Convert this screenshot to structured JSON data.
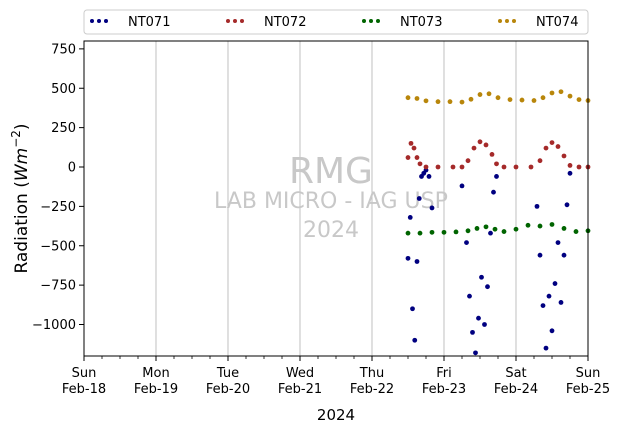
{
  "chart_data": {
    "type": "scatter",
    "xlabel": "2024",
    "ylabel_main": "Radiation (",
    "ylabel_unit": "Wm",
    "ylabel_exp": "−2",
    "ylabel_close": ")",
    "xlim": [
      "2024-02-18",
      "2024-02-25"
    ],
    "ylim": [
      -1200,
      800
    ],
    "yticks": [
      -1000,
      -750,
      -500,
      -250,
      0,
      250,
      500,
      750
    ],
    "ytick_labels": [
      "−1000",
      "−750",
      "−500",
      "−250",
      "0",
      "250",
      "500",
      "750"
    ],
    "xtick_labels": [
      {
        "day": "Sun",
        "date": "Feb-18"
      },
      {
        "day": "Mon",
        "date": "Feb-19"
      },
      {
        "day": "Tue",
        "date": "Feb-20"
      },
      {
        "day": "Wed",
        "date": "Feb-21"
      },
      {
        "day": "Thu",
        "date": "Feb-22"
      },
      {
        "day": "Fri",
        "date": "Feb-23"
      },
      {
        "day": "Sat",
        "date": "Feb-24"
      },
      {
        "day": "Sun",
        "date": "Feb-25"
      }
    ],
    "grid": "vertical",
    "legend_position": "top",
    "watermark": [
      "RMG",
      "LAB MICRO - IAG USP",
      "2024"
    ],
    "series": [
      {
        "name": "NT071",
        "color": "#000080",
        "points": [
          [
            "2024-02-22 12:00",
            -580
          ],
          [
            "2024-02-22 12:45",
            -320
          ],
          [
            "2024-02-22 13:30",
            -900
          ],
          [
            "2024-02-22 14:15",
            -1100
          ],
          [
            "2024-02-22 15:00",
            -600
          ],
          [
            "2024-02-22 15:45",
            -200
          ],
          [
            "2024-02-22 16:30",
            -60
          ],
          [
            "2024-02-22 17:15",
            -40
          ],
          [
            "2024-02-22 18:00",
            -20
          ],
          [
            "2024-02-22 19:00",
            -60
          ],
          [
            "2024-02-22 20:00",
            -260
          ],
          [
            "2024-02-23 06:00",
            -120
          ],
          [
            "2024-02-23 07:30",
            -480
          ],
          [
            "2024-02-23 08:30",
            -820
          ],
          [
            "2024-02-23 09:30",
            -1050
          ],
          [
            "2024-02-23 10:30",
            -1180
          ],
          [
            "2024-02-23 11:30",
            -960
          ],
          [
            "2024-02-23 12:30",
            -700
          ],
          [
            "2024-02-23 13:30",
            -1000
          ],
          [
            "2024-02-23 14:30",
            -760
          ],
          [
            "2024-02-23 15:30",
            -420
          ],
          [
            "2024-02-23 16:30",
            -160
          ],
          [
            "2024-02-23 17:30",
            -60
          ],
          [
            "2024-02-24 07:00",
            -250
          ],
          [
            "2024-02-24 08:00",
            -560
          ],
          [
            "2024-02-24 09:00",
            -880
          ],
          [
            "2024-02-24 10:00",
            -1150
          ],
          [
            "2024-02-24 11:00",
            -820
          ],
          [
            "2024-02-24 12:00",
            -1040
          ],
          [
            "2024-02-24 13:00",
            -740
          ],
          [
            "2024-02-24 14:00",
            -480
          ],
          [
            "2024-02-24 15:00",
            -860
          ],
          [
            "2024-02-24 16:00",
            -560
          ],
          [
            "2024-02-24 17:00",
            -240
          ],
          [
            "2024-02-24 18:00",
            -40
          ]
        ]
      },
      {
        "name": "NT072",
        "color": "#a52a2a",
        "points": [
          [
            "2024-02-22 12:00",
            60
          ],
          [
            "2024-02-22 13:00",
            150
          ],
          [
            "2024-02-22 14:00",
            120
          ],
          [
            "2024-02-22 15:00",
            60
          ],
          [
            "2024-02-22 16:00",
            20
          ],
          [
            "2024-02-22 18:00",
            0
          ],
          [
            "2024-02-22 22:00",
            0
          ],
          [
            "2024-02-23 03:00",
            0
          ],
          [
            "2024-02-23 06:00",
            0
          ],
          [
            "2024-02-23 08:00",
            40
          ],
          [
            "2024-02-23 10:00",
            120
          ],
          [
            "2024-02-23 12:00",
            160
          ],
          [
            "2024-02-23 14:00",
            140
          ],
          [
            "2024-02-23 16:00",
            80
          ],
          [
            "2024-02-23 17:30",
            20
          ],
          [
            "2024-02-23 20:00",
            0
          ],
          [
            "2024-02-24 00:00",
            0
          ],
          [
            "2024-02-24 05:00",
            0
          ],
          [
            "2024-02-24 08:00",
            40
          ],
          [
            "2024-02-24 10:00",
            120
          ],
          [
            "2024-02-24 12:00",
            155
          ],
          [
            "2024-02-24 14:00",
            130
          ],
          [
            "2024-02-24 16:00",
            70
          ],
          [
            "2024-02-24 18:00",
            10
          ],
          [
            "2024-02-24 21:00",
            0
          ],
          [
            "2024-02-25 00:00",
            0
          ]
        ]
      },
      {
        "name": "NT073",
        "color": "#006400",
        "points": [
          [
            "2024-02-22 12:00",
            -420
          ],
          [
            "2024-02-22 16:00",
            -420
          ],
          [
            "2024-02-22 20:00",
            -415
          ],
          [
            "2024-02-23 00:00",
            -415
          ],
          [
            "2024-02-23 04:00",
            -412
          ],
          [
            "2024-02-23 08:00",
            -405
          ],
          [
            "2024-02-23 11:00",
            -390
          ],
          [
            "2024-02-23 14:00",
            -380
          ],
          [
            "2024-02-23 17:00",
            -395
          ],
          [
            "2024-02-23 20:00",
            -410
          ],
          [
            "2024-02-24 00:00",
            -395
          ],
          [
            "2024-02-24 04:00",
            -370
          ],
          [
            "2024-02-24 08:00",
            -375
          ],
          [
            "2024-02-24 12:00",
            -365
          ],
          [
            "2024-02-24 16:00",
            -390
          ],
          [
            "2024-02-24 20:00",
            -410
          ],
          [
            "2024-02-25 00:00",
            -405
          ]
        ]
      },
      {
        "name": "NT074",
        "color": "#b8860b",
        "points": [
          [
            "2024-02-22 12:00",
            440
          ],
          [
            "2024-02-22 15:00",
            435
          ],
          [
            "2024-02-22 18:00",
            420
          ],
          [
            "2024-02-22 22:00",
            415
          ],
          [
            "2024-02-23 02:00",
            415
          ],
          [
            "2024-02-23 06:00",
            412
          ],
          [
            "2024-02-23 09:00",
            430
          ],
          [
            "2024-02-23 12:00",
            460
          ],
          [
            "2024-02-23 15:00",
            465
          ],
          [
            "2024-02-23 18:00",
            440
          ],
          [
            "2024-02-23 22:00",
            428
          ],
          [
            "2024-02-24 02:00",
            425
          ],
          [
            "2024-02-24 06:00",
            422
          ],
          [
            "2024-02-24 09:00",
            440
          ],
          [
            "2024-02-24 12:00",
            470
          ],
          [
            "2024-02-24 15:00",
            478
          ],
          [
            "2024-02-24 18:00",
            450
          ],
          [
            "2024-02-24 21:00",
            428
          ],
          [
            "2024-02-25 00:00",
            422
          ]
        ]
      }
    ]
  }
}
